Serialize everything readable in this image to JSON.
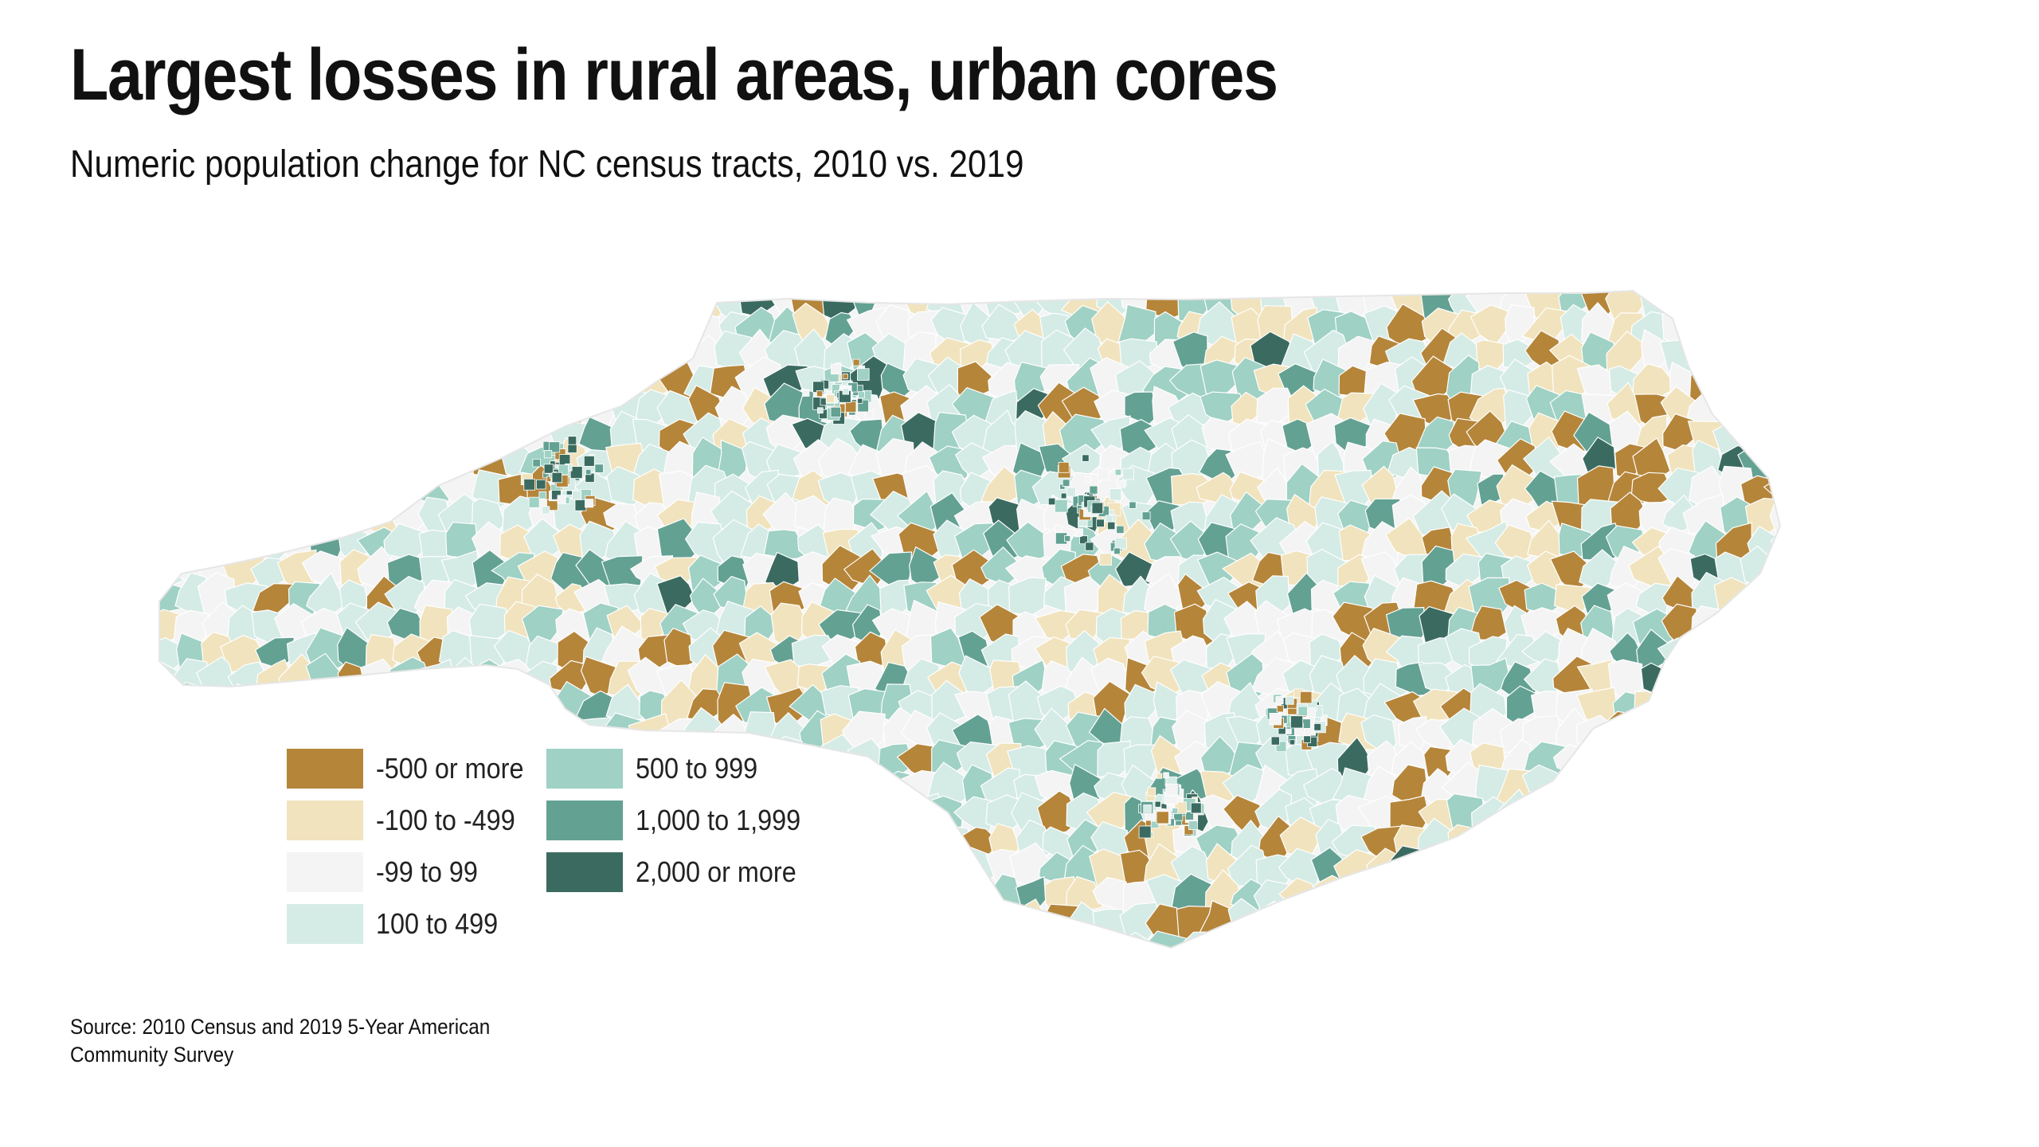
{
  "title": "Largest losses in rural areas, urban cores",
  "subtitle": "Numeric population change for NC census tracts, 2010 vs. 2019",
  "source": "Source: 2010 Census and 2019 5-Year American Community Survey",
  "legend": {
    "items": [
      {
        "label": "-500 or more",
        "color": "#b5853a"
      },
      {
        "label": "-100 to -499",
        "color": "#f1e3bd"
      },
      {
        "label": "-99 to 99",
        "color": "#f4f4f4"
      },
      {
        "label": "100 to 499",
        "color": "#d5ebe6"
      },
      {
        "label": "500 to 999",
        "color": "#9fd1c4"
      },
      {
        "label": "1,000 to 1,999",
        "color": "#63a193"
      },
      {
        "label": "2,000 or more",
        "color": "#3b6b60"
      }
    ]
  },
  "map": {
    "region": "North Carolina",
    "unit": "census tract",
    "outline_color": "#f6f6f6"
  }
}
